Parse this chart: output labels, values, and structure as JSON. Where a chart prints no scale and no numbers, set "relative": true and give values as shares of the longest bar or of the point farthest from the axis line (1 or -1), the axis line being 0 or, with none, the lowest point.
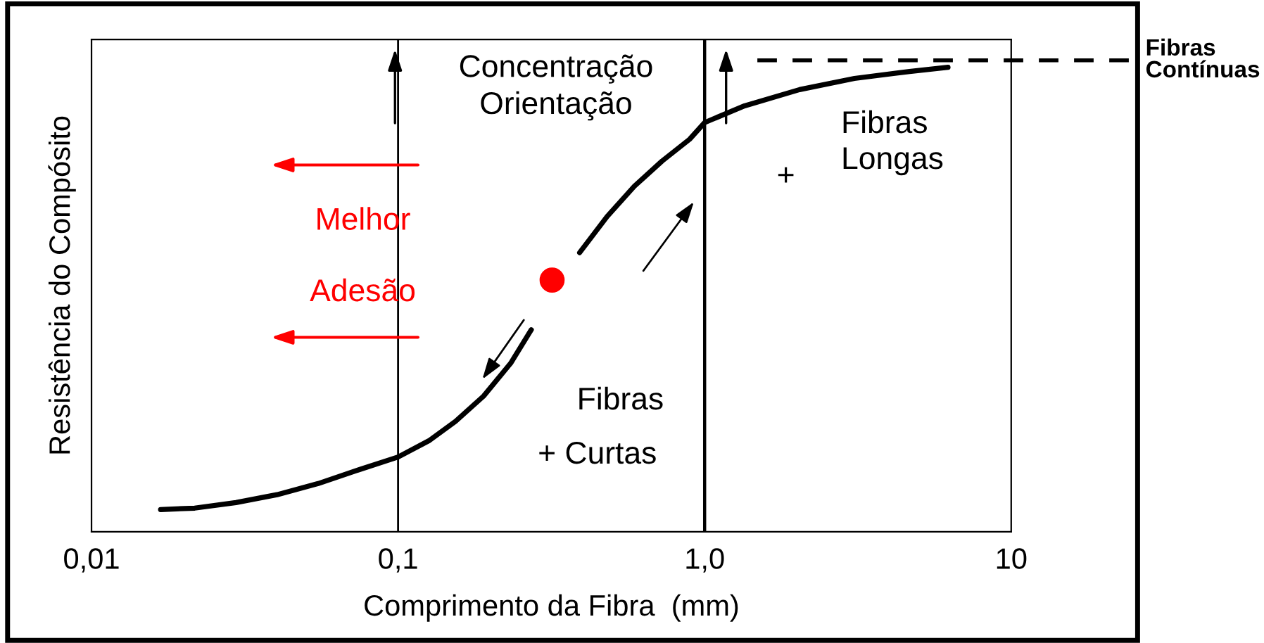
{
  "chart_data": {
    "type": "line",
    "relative": true,
    "log": "x",
    "xlabel": "Comprimento da Fibra  (mm)",
    "ylabel": "Resistência do Compósito",
    "xlim": [
      0.01,
      10
    ],
    "xticks": [
      {
        "value": 0.01,
        "label": "0,01"
      },
      {
        "value": 0.1,
        "label": "0,1"
      },
      {
        "value": 1,
        "label": "1,0"
      },
      {
        "value": 10,
        "label": "10"
      }
    ],
    "tick_labels": "x",
    "grid": false,
    "marker": "none",
    "line_style": "solid",
    "series": [
      {
        "type": "line",
        "color": "#000000",
        "x": [
          0.0168,
          0.0217,
          0.0296,
          0.0403,
          0.0549,
          0.0748,
          0.1,
          0.126,
          0.154,
          0.19,
          0.233,
          0.272,
          0.33,
          0.391,
          0.481,
          0.59,
          0.726,
          0.893,
          1.0,
          1.35,
          2.04,
          3.08,
          4.66,
          6.22
        ],
        "values": [
          0.048,
          0.051,
          0.063,
          0.08,
          0.104,
          0.134,
          0.161,
          0.196,
          0.238,
          0.292,
          0.363,
          0.435,
          null,
          0.601,
          0.679,
          0.744,
          0.798,
          0.845,
          0.881,
          0.917,
          0.952,
          0.976,
          0.991,
          1.0
        ]
      },
      {
        "type": "scatter",
        "color": "#ff0000",
        "marker": "circle",
        "x": [
          0.318
        ],
        "values": [
          0.542
        ]
      }
    ],
    "ref_lines": [
      {
        "axis": "x",
        "value": 0.1
      },
      {
        "axis": "x",
        "value": 1.0
      },
      {
        "axis": "y",
        "value": 1.015,
        "label": "Fibras\nContínuas",
        "line_style": "dashed"
      }
    ],
    "annotations": [
      "Concentração",
      "Orientação",
      "Fibras\nLongas",
      "+",
      "Melhor",
      "Adesão",
      "Fibras",
      "+ Curtas"
    ]
  }
}
